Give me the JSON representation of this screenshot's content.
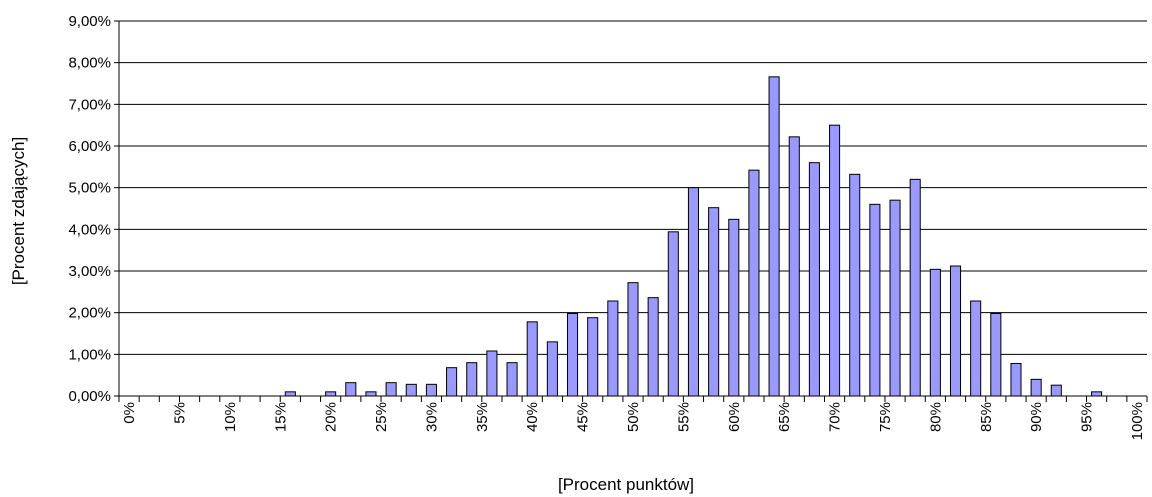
{
  "chart_data": {
    "type": "bar",
    "title": "",
    "xlabel": "[Procent punktów]",
    "ylabel": "[Procent zdających]",
    "ylim": [
      0,
      9
    ],
    "y_ticks": [
      "0,00%",
      "1,00%",
      "2,00%",
      "3,00%",
      "4,00%",
      "5,00%",
      "6,00%",
      "7,00%",
      "8,00%",
      "9,00%"
    ],
    "x_tick_labels": [
      "0%",
      "5%",
      "10%",
      "15%",
      "20%",
      "25%",
      "30%",
      "35%",
      "40%",
      "45%",
      "50%",
      "55%",
      "60%",
      "65%",
      "70%",
      "75%",
      "80%",
      "85%",
      "90%",
      "95%",
      "100%"
    ],
    "grid": "horizontal",
    "bar_color": "#9999ff",
    "x": [
      0,
      2,
      4,
      6,
      8,
      10,
      12,
      14,
      16,
      18,
      20,
      22,
      24,
      26,
      28,
      30,
      32,
      34,
      36,
      38,
      40,
      42,
      44,
      46,
      48,
      50,
      52,
      54,
      56,
      58,
      60,
      62,
      64,
      66,
      68,
      70,
      72,
      74,
      76,
      78,
      80,
      82,
      84,
      86,
      88,
      90,
      92,
      94,
      96,
      98,
      100
    ],
    "values": [
      0,
      0,
      0,
      0,
      0,
      0,
      0,
      0,
      0.1,
      0,
      0.1,
      0.32,
      0.1,
      0.32,
      0.28,
      0.28,
      0.68,
      0.8,
      1.08,
      0.8,
      1.78,
      1.3,
      1.98,
      1.88,
      2.28,
      2.72,
      2.36,
      3.94,
      5.0,
      4.52,
      4.24,
      5.42,
      7.66,
      6.22,
      5.6,
      6.5,
      5.32,
      4.6,
      4.7,
      5.2,
      3.04,
      3.12,
      2.28,
      1.98,
      0.78,
      0.4,
      0.26,
      0,
      0.1,
      0,
      0
    ]
  }
}
